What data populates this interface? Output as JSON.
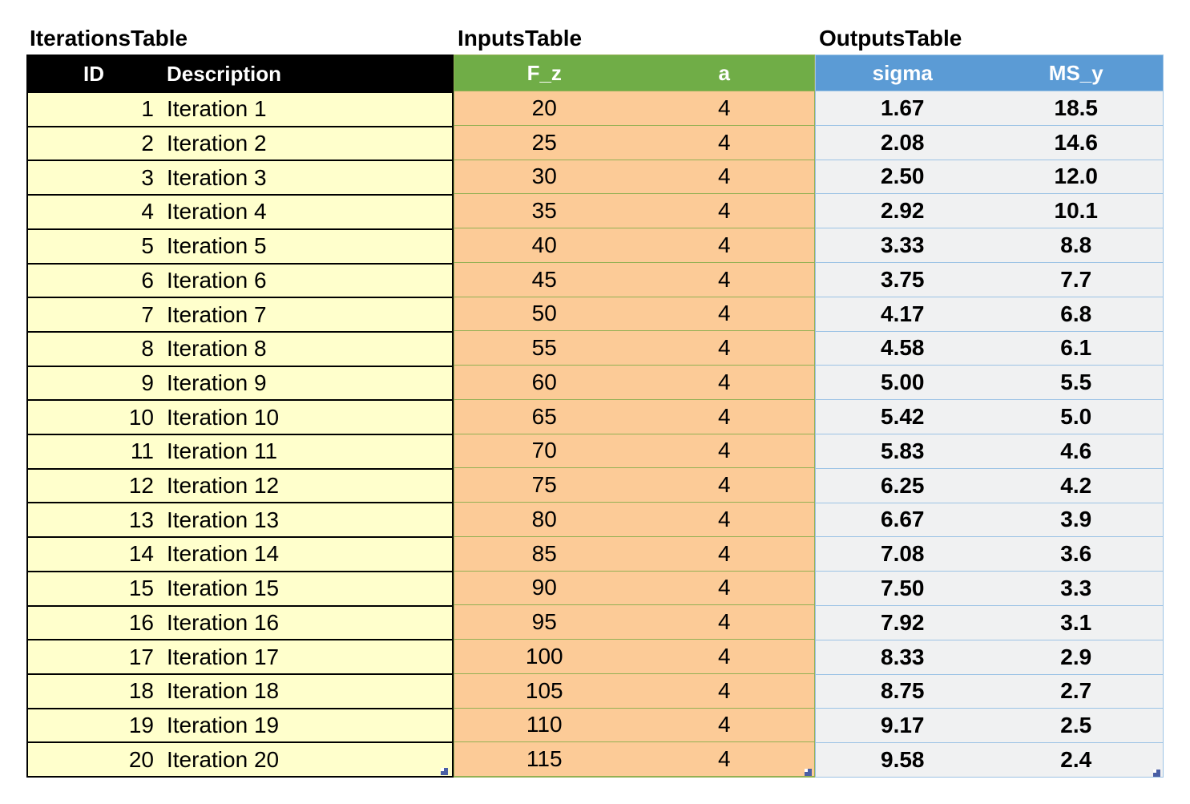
{
  "tables": {
    "iterations": {
      "title": "IterationsTable",
      "columns": [
        "ID",
        "Description"
      ],
      "rows": [
        [
          "1",
          "Iteration 1"
        ],
        [
          "2",
          "Iteration 2"
        ],
        [
          "3",
          "Iteration 3"
        ],
        [
          "4",
          "Iteration 4"
        ],
        [
          "5",
          "Iteration 5"
        ],
        [
          "6",
          "Iteration 6"
        ],
        [
          "7",
          "Iteration 7"
        ],
        [
          "8",
          "Iteration 8"
        ],
        [
          "9",
          "Iteration 9"
        ],
        [
          "10",
          "Iteration 10"
        ],
        [
          "11",
          "Iteration 11"
        ],
        [
          "12",
          "Iteration 12"
        ],
        [
          "13",
          "Iteration 13"
        ],
        [
          "14",
          "Iteration 14"
        ],
        [
          "15",
          "Iteration 15"
        ],
        [
          "16",
          "Iteration 16"
        ],
        [
          "17",
          "Iteration 17"
        ],
        [
          "18",
          "Iteration 18"
        ],
        [
          "19",
          "Iteration 19"
        ],
        [
          "20",
          "Iteration 20"
        ]
      ],
      "colors": {
        "header_bg": "#000000",
        "header_text": "#FFFFFF",
        "row_bg": "#FFFFCC",
        "border": "#000000"
      }
    },
    "inputs": {
      "title": "InputsTable",
      "columns": [
        "F_z",
        "a"
      ],
      "rows": [
        [
          "20",
          "4"
        ],
        [
          "25",
          "4"
        ],
        [
          "30",
          "4"
        ],
        [
          "35",
          "4"
        ],
        [
          "40",
          "4"
        ],
        [
          "45",
          "4"
        ],
        [
          "50",
          "4"
        ],
        [
          "55",
          "4"
        ],
        [
          "60",
          "4"
        ],
        [
          "65",
          "4"
        ],
        [
          "70",
          "4"
        ],
        [
          "75",
          "4"
        ],
        [
          "80",
          "4"
        ],
        [
          "85",
          "4"
        ],
        [
          "90",
          "4"
        ],
        [
          "95",
          "4"
        ],
        [
          "100",
          "4"
        ],
        [
          "105",
          "4"
        ],
        [
          "110",
          "4"
        ],
        [
          "115",
          "4"
        ]
      ],
      "colors": {
        "header_bg": "#70AD47",
        "header_text": "#FFFFFF",
        "row_bg": "#FCCB97",
        "border": "#94B054"
      }
    },
    "outputs": {
      "title": "OutputsTable",
      "columns": [
        "sigma",
        "MS_y"
      ],
      "rows": [
        [
          "1.67",
          "18.5"
        ],
        [
          "2.08",
          "14.6"
        ],
        [
          "2.50",
          "12.0"
        ],
        [
          "2.92",
          "10.1"
        ],
        [
          "3.33",
          "8.8"
        ],
        [
          "3.75",
          "7.7"
        ],
        [
          "4.17",
          "6.8"
        ],
        [
          "4.58",
          "6.1"
        ],
        [
          "5.00",
          "5.5"
        ],
        [
          "5.42",
          "5.0"
        ],
        [
          "5.83",
          "4.6"
        ],
        [
          "6.25",
          "4.2"
        ],
        [
          "6.67",
          "3.9"
        ],
        [
          "7.08",
          "3.6"
        ],
        [
          "7.50",
          "3.3"
        ],
        [
          "7.92",
          "3.1"
        ],
        [
          "8.33",
          "2.9"
        ],
        [
          "8.75",
          "2.7"
        ],
        [
          "9.17",
          "2.5"
        ],
        [
          "9.58",
          "2.4"
        ]
      ],
      "colors": {
        "header_bg": "#5B9BD5",
        "header_text": "#FFFFFF",
        "row_bg": "#F0F1F2",
        "border": "#9CC3E5"
      }
    }
  },
  "resize_handle_color": "#4A5FA5"
}
